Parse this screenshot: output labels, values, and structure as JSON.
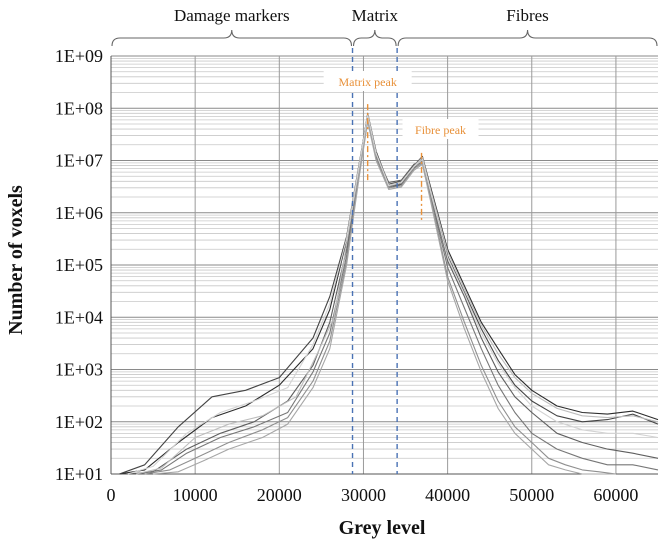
{
  "chart_data": {
    "type": "line",
    "title": "",
    "xlabel": "Grey level",
    "ylabel": "Number of voxels",
    "xlim": [
      0,
      65000
    ],
    "ylim": [
      10,
      1000000000
    ],
    "yscale": "log",
    "grid": {
      "major_y": true,
      "minor_y": true,
      "major_x": true
    },
    "x_ticks": [
      {
        "value": 0,
        "label": "0"
      },
      {
        "value": 10000,
        "label": "10000"
      },
      {
        "value": 20000,
        "label": "20000"
      },
      {
        "value": 30000,
        "label": "30000"
      },
      {
        "value": 40000,
        "label": "40000"
      },
      {
        "value": 50000,
        "label": "50000"
      },
      {
        "value": 60000,
        "label": "60000"
      }
    ],
    "y_ticks": [
      {
        "value": 10,
        "label": "1E+01"
      },
      {
        "value": 100,
        "label": "1E+02"
      },
      {
        "value": 1000,
        "label": "1E+03"
      },
      {
        "value": 10000,
        "label": "1E+04"
      },
      {
        "value": 100000,
        "label": "1E+05"
      },
      {
        "value": 1000000,
        "label": "1E+06"
      },
      {
        "value": 10000000,
        "label": "1E+07"
      },
      {
        "value": 100000000,
        "label": "1E+08"
      },
      {
        "value": 1000000000,
        "label": "1E+09"
      }
    ],
    "regions": [
      {
        "label": "Damage markers",
        "x_start": 0,
        "x_end": 28700
      },
      {
        "label": "Matrix",
        "x_start": 28700,
        "x_end": 34000
      },
      {
        "label": "Fibres",
        "x_start": 34000,
        "x_end": 65000
      }
    ],
    "thresholds": [
      28700,
      34000
    ],
    "peaks": [
      {
        "label": "Matrix peak",
        "x": 30500,
        "y_top": 120000000,
        "y_bottom": 4000000
      },
      {
        "label": "Fibre peak",
        "x": 36900,
        "y_top": 14000000,
        "y_bottom": 700000
      }
    ],
    "series_style": {
      "colors": [
        "#2b2b2b",
        "#444444",
        "#5e5e5e",
        "#777777",
        "#8f8f8f",
        "#a6a6a6",
        "#bdbdbd",
        "#d2d2d2"
      ]
    },
    "series": [
      {
        "x": [
          1000,
          4000,
          8000,
          12000,
          16000,
          20000,
          24000,
          26000,
          28000,
          29500,
          30500,
          31500,
          33000,
          34500,
          36000,
          37000,
          38000,
          40000,
          42000,
          44000,
          46000,
          48000,
          50000,
          53000,
          56000,
          59000,
          62000,
          65000
        ],
        "y": [
          10,
          12,
          40,
          120,
          200,
          500,
          2500,
          14000,
          300000,
          8000000,
          80000000,
          15000000,
          3500000,
          4000000,
          8000000,
          12000000,
          3000000,
          200000,
          40000,
          8000,
          2500,
          800,
          400,
          200,
          150,
          140,
          160,
          110
        ]
      },
      {
        "x": [
          1000,
          4000,
          8000,
          12000,
          16000,
          20000,
          24000,
          26000,
          28000,
          29500,
          30500,
          31500,
          33000,
          34500,
          36000,
          37000,
          38000,
          40000,
          42000,
          44000,
          46000,
          48000,
          50000,
          53000,
          56000,
          59000,
          62000,
          65000
        ],
        "y": [
          10,
          15,
          80,
          300,
          400,
          700,
          4000,
          25000,
          350000,
          9000000,
          75000000,
          14000000,
          3000000,
          3500000,
          7000000,
          11000000,
          2500000,
          150000,
          30000,
          6000,
          1500,
          500,
          250,
          130,
          100,
          110,
          140,
          90
        ]
      },
      {
        "x": [
          2000,
          5000,
          9000,
          13000,
          17000,
          21000,
          24000,
          26000,
          28000,
          29500,
          30500,
          31500,
          33000,
          34500,
          36000,
          37000,
          38000,
          40000,
          42000,
          44000,
          46000,
          48000,
          50000,
          53000,
          56000,
          59000,
          62000,
          65000
        ],
        "y": [
          10,
          11,
          30,
          60,
          100,
          250,
          1200,
          8000,
          200000,
          7000000,
          70000000,
          13000000,
          3800000,
          4200000,
          8500000,
          10000000,
          2200000,
          120000,
          25000,
          4000,
          900,
          300,
          150,
          60,
          40,
          30,
          25,
          20
        ]
      },
      {
        "x": [
          3000,
          6000,
          9000,
          13000,
          17000,
          21000,
          24000,
          26000,
          28000,
          29500,
          30500,
          31500,
          33000,
          34500,
          36000,
          37000,
          38000,
          40000,
          42000,
          44000,
          46000,
          48000,
          50000,
          53000,
          56000,
          59000,
          62000,
          65000
        ],
        "y": [
          10,
          12,
          25,
          50,
          80,
          150,
          900,
          5000,
          150000,
          6000000,
          65000000,
          12000000,
          3200000,
          3600000,
          7500000,
          9500000,
          2000000,
          90000,
          15000,
          2500,
          500,
          150,
          60,
          30,
          20,
          15,
          15,
          12
        ]
      },
      {
        "x": [
          4000,
          7000,
          10000,
          14000,
          18000,
          21000,
          24000,
          26000,
          28000,
          29500,
          30500,
          31500,
          33000,
          34500,
          36000,
          37000,
          38000,
          40000,
          42000,
          44000,
          46000,
          48000,
          50000,
          52000,
          54000,
          56000,
          58000,
          60000
        ],
        "y": [
          10,
          12,
          20,
          40,
          70,
          120,
          600,
          3500,
          120000,
          5500000,
          60000000,
          11000000,
          3000000,
          3300000,
          7000000,
          9000000,
          1800000,
          60000,
          8000,
          1200,
          250,
          80,
          40,
          20,
          15,
          12,
          11,
          10
        ]
      },
      {
        "x": [
          5000,
          8000,
          11000,
          14000,
          18000,
          21000,
          24000,
          26000,
          28000,
          29500,
          30500,
          31500,
          33000,
          34500,
          36000,
          37000,
          38000,
          40000,
          42000,
          44000,
          46000,
          48000,
          50000,
          52000,
          54000,
          56000,
          58000,
          60000
        ],
        "y": [
          10,
          11,
          18,
          30,
          50,
          90,
          450,
          2500,
          100000,
          5000000,
          55000000,
          10000000,
          2800000,
          3100000,
          6500000,
          8500000,
          1600000,
          50000,
          6000,
          900,
          180,
          60,
          30,
          15,
          12,
          10,
          10,
          10
        ]
      },
      {
        "x": [
          3000,
          6000,
          10000,
          14000,
          18000,
          22000,
          24500,
          26500,
          28000,
          29500,
          30500,
          31500,
          33000,
          34500,
          36000,
          37000,
          38000,
          40000,
          42000,
          44000,
          46000,
          48000,
          50000,
          53000,
          56000,
          59000,
          62000,
          65000
        ],
        "y": [
          10,
          13,
          50,
          90,
          130,
          300,
          2000,
          10000,
          250000,
          7500000,
          78000000,
          14000000,
          3400000,
          3900000,
          7800000,
          11500000,
          2700000,
          180000,
          35000,
          7000,
          2000,
          700,
          350,
          180,
          130,
          120,
          130,
          100
        ]
      },
      {
        "x": [
          2000,
          5000,
          9000,
          13000,
          17000,
          21000,
          24000,
          26000,
          28000,
          29500,
          30500,
          31500,
          33000,
          34500,
          36000,
          37000,
          38000,
          40000,
          42000,
          44000,
          46000,
          48000,
          50000,
          53000,
          56000,
          59000,
          62000,
          65000
        ],
        "y": [
          10,
          14,
          60,
          150,
          250,
          450,
          3000,
          18000,
          320000,
          8500000,
          72000000,
          13500000,
          3300000,
          3800000,
          7600000,
          10500000,
          2400000,
          140000,
          28000,
          5000,
          1300,
          450,
          200,
          100,
          70,
          60,
          60,
          50
        ]
      }
    ]
  }
}
